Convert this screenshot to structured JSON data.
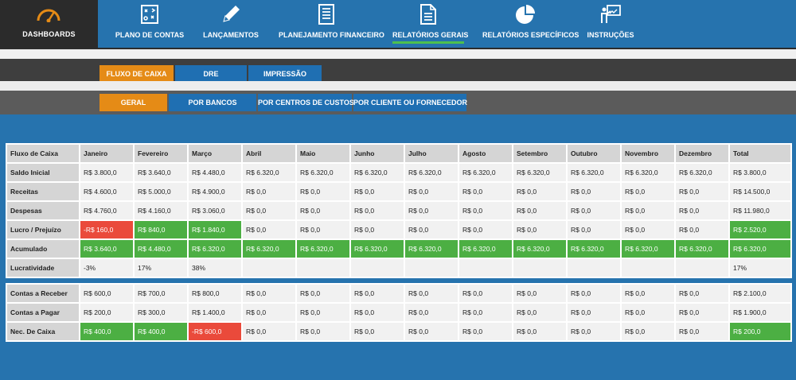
{
  "nav": {
    "brand_label": "DASHBOARDS",
    "items": [
      {
        "label": "PLANO DE CONTAS",
        "icon": "chart-of-accounts-icon"
      },
      {
        "label": "LANÇAMENTOS",
        "icon": "pencil-icon"
      },
      {
        "label": "PLANEJAMENTO FINANCEIRO",
        "icon": "list-document-icon"
      },
      {
        "label": "RELATÓRIOS GERAIS",
        "icon": "document-icon"
      },
      {
        "label": "RELATÓRIOS ESPECÍFICOS",
        "icon": "pie-chart-icon"
      },
      {
        "label": "INSTRUÇÕES",
        "icon": "presentation-icon"
      }
    ],
    "active_item": "RELATÓRIOS GERAIS",
    "active_underline_color": "#4ec04e"
  },
  "report_tabs": [
    "FLUXO DE CAIXA",
    "DRE",
    "IMPRESSÃO"
  ],
  "filter_tabs": [
    "GERAL",
    "POR BANCOS",
    "POR CENTROS DE CUSTOS",
    "POR CLIENTE OU FORNECEDOR"
  ],
  "colors": {
    "accent_orange": "#e58b16",
    "positive_green": "#4caf43",
    "negative_red": "#ea4a3b",
    "background_blue": "#2673ae"
  },
  "table": {
    "headers": [
      "Fluxo de Caixa",
      "Janeiro",
      "Fevereiro",
      "Março",
      "Abril",
      "Maio",
      "Junho",
      "Julho",
      "Agosto",
      "Setembro",
      "Outubro",
      "Novembro",
      "Dezembro",
      "Total"
    ],
    "rows": [
      [
        "Saldo Inicial",
        "R$ 3.800,0",
        "R$ 3.640,0",
        "R$ 4.480,0",
        "R$ 6.320,0",
        "R$ 6.320,0",
        "R$ 6.320,0",
        "R$ 6.320,0",
        "R$ 6.320,0",
        "R$ 6.320,0",
        "R$ 6.320,0",
        "R$ 6.320,0",
        "R$ 6.320,0",
        "R$ 3.800,0"
      ],
      [
        "Receitas",
        "R$ 4.600,0",
        "R$ 5.000,0",
        "R$ 4.900,0",
        "R$ 0,0",
        "R$ 0,0",
        "R$ 0,0",
        "R$ 0,0",
        "R$ 0,0",
        "R$ 0,0",
        "R$ 0,0",
        "R$ 0,0",
        "R$ 0,0",
        "R$ 14.500,0"
      ],
      [
        "Despesas",
        "R$ 4.760,0",
        "R$ 4.160,0",
        "R$ 3.060,0",
        "R$ 0,0",
        "R$ 0,0",
        "R$ 0,0",
        "R$ 0,0",
        "R$ 0,0",
        "R$ 0,0",
        "R$ 0,0",
        "R$ 0,0",
        "R$ 0,0",
        "R$ 11.980,0"
      ],
      [
        "Lucro / Prejuízo",
        "-R$ 160,0",
        "R$ 840,0",
        "R$ 1.840,0",
        "R$ 0,0",
        "R$ 0,0",
        "R$ 0,0",
        "R$ 0,0",
        "R$ 0,0",
        "R$ 0,0",
        "R$ 0,0",
        "R$ 0,0",
        "R$ 0,0",
        "R$ 2.520,0"
      ],
      [
        "Acumulado",
        "R$ 3.640,0",
        "R$ 4.480,0",
        "R$ 6.320,0",
        "R$ 6.320,0",
        "R$ 6.320,0",
        "R$ 6.320,0",
        "R$ 6.320,0",
        "R$ 6.320,0",
        "R$ 6.320,0",
        "R$ 6.320,0",
        "R$ 6.320,0",
        "R$ 6.320,0",
        "R$ 6.320,0"
      ],
      [
        "Lucratividade",
        "-3%",
        "17%",
        "38%",
        "",
        "",
        "",
        "",
        "",
        "",
        "",
        "",
        "",
        "17%"
      ],
      [
        "Contas a Receber",
        "R$ 600,0",
        "R$ 700,0",
        "R$ 800,0",
        "R$ 0,0",
        "R$ 0,0",
        "R$ 0,0",
        "R$ 0,0",
        "R$ 0,0",
        "R$ 0,0",
        "R$ 0,0",
        "R$ 0,0",
        "R$ 0,0",
        "R$ 2.100,0"
      ],
      [
        "Contas a Pagar",
        "R$ 200,0",
        "R$ 300,0",
        "R$ 1.400,0",
        "R$ 0,0",
        "R$ 0,0",
        "R$ 0,0",
        "R$ 0,0",
        "R$ 0,0",
        "R$ 0,0",
        "R$ 0,0",
        "R$ 0,0",
        "R$ 0,0",
        "R$ 1.900,0"
      ],
      [
        "Nec. De Caixa",
        "R$ 400,0",
        "R$ 400,0",
        "-R$ 600,0",
        "R$ 0,0",
        "R$ 0,0",
        "R$ 0,0",
        "R$ 0,0",
        "R$ 0,0",
        "R$ 0,0",
        "R$ 0,0",
        "R$ 0,0",
        "R$ 0,0",
        "R$ 200,0"
      ]
    ]
  }
}
